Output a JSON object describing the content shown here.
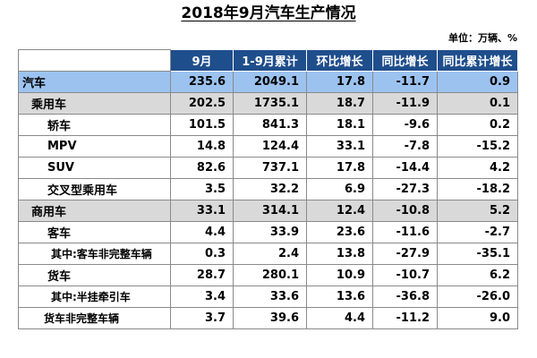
{
  "title": "2018年9月汽车生产情况",
  "unit_note": "单位：万辆、%",
  "columns": [
    "9月",
    "1-9月累计",
    "环比增长",
    "同比增长",
    "同比累计增长"
  ],
  "rows": [
    {
      "level": 0,
      "name": "汽车",
      "values": [
        "235.6",
        "2049.1",
        "17.8",
        "-11.7",
        "0.9"
      ]
    },
    {
      "level": 1,
      "name": "乘用车",
      "values": [
        "202.5",
        "1735.1",
        "18.7",
        "-11.9",
        "0.1"
      ]
    },
    {
      "level": 2,
      "name": "轿车",
      "values": [
        "101.5",
        "841.3",
        "18.1",
        "-9.6",
        "0.2"
      ]
    },
    {
      "level": 2,
      "name": "MPV",
      "values": [
        "14.8",
        "124.4",
        "33.1",
        "-7.8",
        "-15.2"
      ]
    },
    {
      "level": 2,
      "name": "SUV",
      "values": [
        "82.6",
        "737.1",
        "17.8",
        "-14.4",
        "4.2"
      ]
    },
    {
      "level": 2,
      "name": "交叉型乘用车",
      "values": [
        "3.5",
        "32.2",
        "6.9",
        "-27.3",
        "-18.2"
      ]
    },
    {
      "level": 1,
      "name": "商用车",
      "values": [
        "33.1",
        "314.1",
        "12.4",
        "-10.8",
        "5.2"
      ]
    },
    {
      "level": 2,
      "name": "客车",
      "values": [
        "4.4",
        "33.9",
        "23.6",
        "-11.6",
        "-2.7"
      ]
    },
    {
      "level": 3,
      "name": "其中:客车非完整车辆",
      "values": [
        "0.3",
        "2.4",
        "13.8",
        "-27.9",
        "-35.1"
      ]
    },
    {
      "level": 2,
      "name": "货车",
      "values": [
        "28.7",
        "280.1",
        "10.9",
        "-10.7",
        "6.2"
      ]
    },
    {
      "level": 3,
      "name": "其中:半挂牵引车",
      "values": [
        "3.4",
        "33.6",
        "13.6",
        "-36.8",
        "-26.0"
      ]
    },
    {
      "level": 3,
      "name": "货车非完整车辆",
      "values": [
        "3.7",
        "39.6",
        "4.4",
        "-11.2",
        "9.0"
      ]
    }
  ],
  "colors": {
    "header_bg": "#1f4e8c",
    "header_text": "#ffffff",
    "total_row_bg": "#9cc3f0",
    "subtotal_row_bg": "#d9d9d9",
    "border": "#8a8a8a"
  }
}
